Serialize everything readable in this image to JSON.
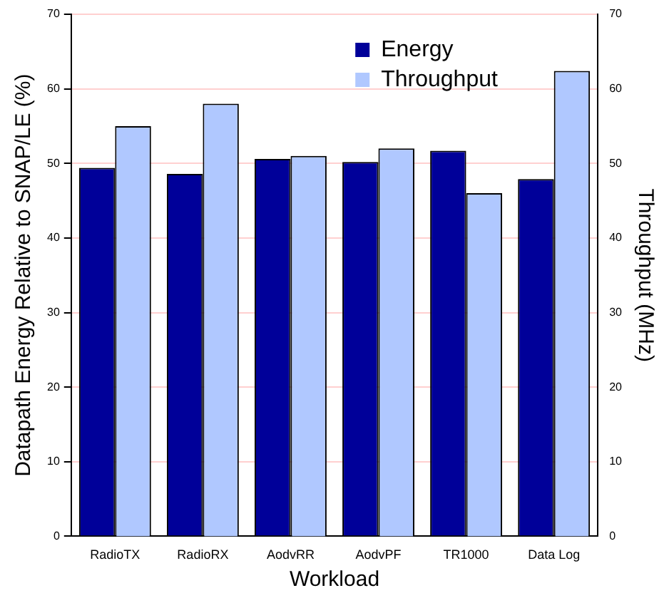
{
  "chart_data": {
    "type": "bar",
    "xlabel": "Workload",
    "ylabel": "Datapath Energy Relative to SNAP/LE (%)",
    "y2label": "Throughput (MHz)",
    "categories": [
      "RadioTX",
      "RadioRX",
      "AodvRR",
      "AodvPF",
      "TR1000",
      "Data Log"
    ],
    "series": [
      {
        "name": "Energy",
        "color": "#000099",
        "values": [
          49.4,
          48.6,
          50.6,
          50.2,
          51.7,
          47.9
        ]
      },
      {
        "name": "Throughput",
        "color": "#b0c8ff",
        "axis": "y2",
        "values": [
          55,
          58,
          51,
          52,
          46,
          62.4
        ]
      }
    ],
    "ylim": [
      0,
      70
    ],
    "yticks": [
      0,
      10,
      20,
      30,
      40,
      50,
      60,
      70
    ],
    "y2lim": [
      0,
      70
    ],
    "y2ticks": [
      0,
      10,
      20,
      30,
      40,
      50,
      60,
      70
    ],
    "grid": "y",
    "legend": "top right"
  }
}
